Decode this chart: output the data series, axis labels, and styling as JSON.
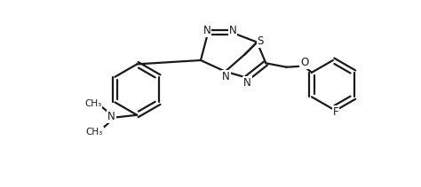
{
  "background_color": "#ffffff",
  "line_color": "#1a1a1a",
  "line_width": 1.6,
  "font_size": 8.5,
  "figsize": [
    4.74,
    2.11
  ],
  "dpi": 100,
  "xlim": [
    -3.2,
    3.5
  ],
  "ylim": [
    -1.8,
    2.0
  ]
}
